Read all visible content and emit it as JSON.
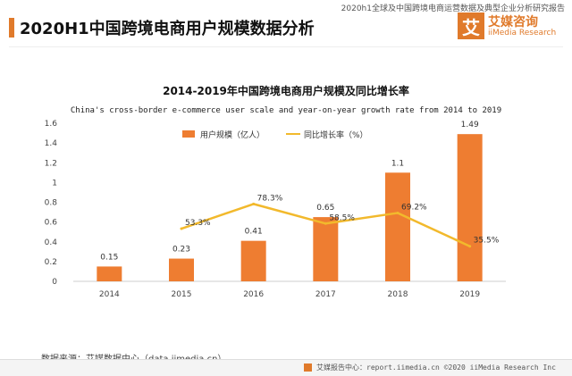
{
  "header": {
    "top_note": "2020h1全球及中国跨境电商运营数据及典型企业分析研究报告",
    "title": "2020H1中国跨境电商用户规模数据分析",
    "logo_char": "艾",
    "logo_cn": "艾媒咨询",
    "logo_en": "iiMedia Research"
  },
  "colors": {
    "accent": "#e07a2b",
    "bar": "#ee7d31",
    "line": "#f2b92c"
  },
  "chart_data": {
    "type": "bar",
    "title": "2014-2019年中国跨境电商用户规模及同比增长率",
    "subtitle": "China's cross-border e-commerce user scale and year-on-year growth rate from 2014 to 2019",
    "categories": [
      "2014",
      "2015",
      "2016",
      "2017",
      "2018",
      "2019"
    ],
    "series": [
      {
        "name": "用户规模（亿人）",
        "type": "bar",
        "values": [
          0.15,
          0.23,
          0.41,
          0.65,
          1.1,
          1.49
        ],
        "labels": [
          "0.15",
          "0.23",
          "0.41",
          "0.65",
          "1.1",
          "1.49"
        ]
      },
      {
        "name": "同比增长率（%）",
        "type": "line",
        "values": [
          null,
          53.3,
          78.3,
          58.5,
          69.2,
          35.5
        ],
        "labels": [
          "",
          "53.3%",
          "78.3%",
          "58.5%",
          "69.2%",
          "35.5%"
        ]
      }
    ],
    "ylim": [
      0,
      1.6
    ],
    "yticks": [
      "0",
      "0.2",
      "0.4",
      "0.6",
      "0.8",
      "1",
      "1.2",
      "1.4",
      "1.6"
    ],
    "legend_position": "top-center",
    "grid": false
  },
  "source": "数据来源：艾媒数据中心（data.iimedia.cn）",
  "footer": "艾媒报告中心：report.iimedia.cn  ©2020  iiMedia Research  Inc"
}
